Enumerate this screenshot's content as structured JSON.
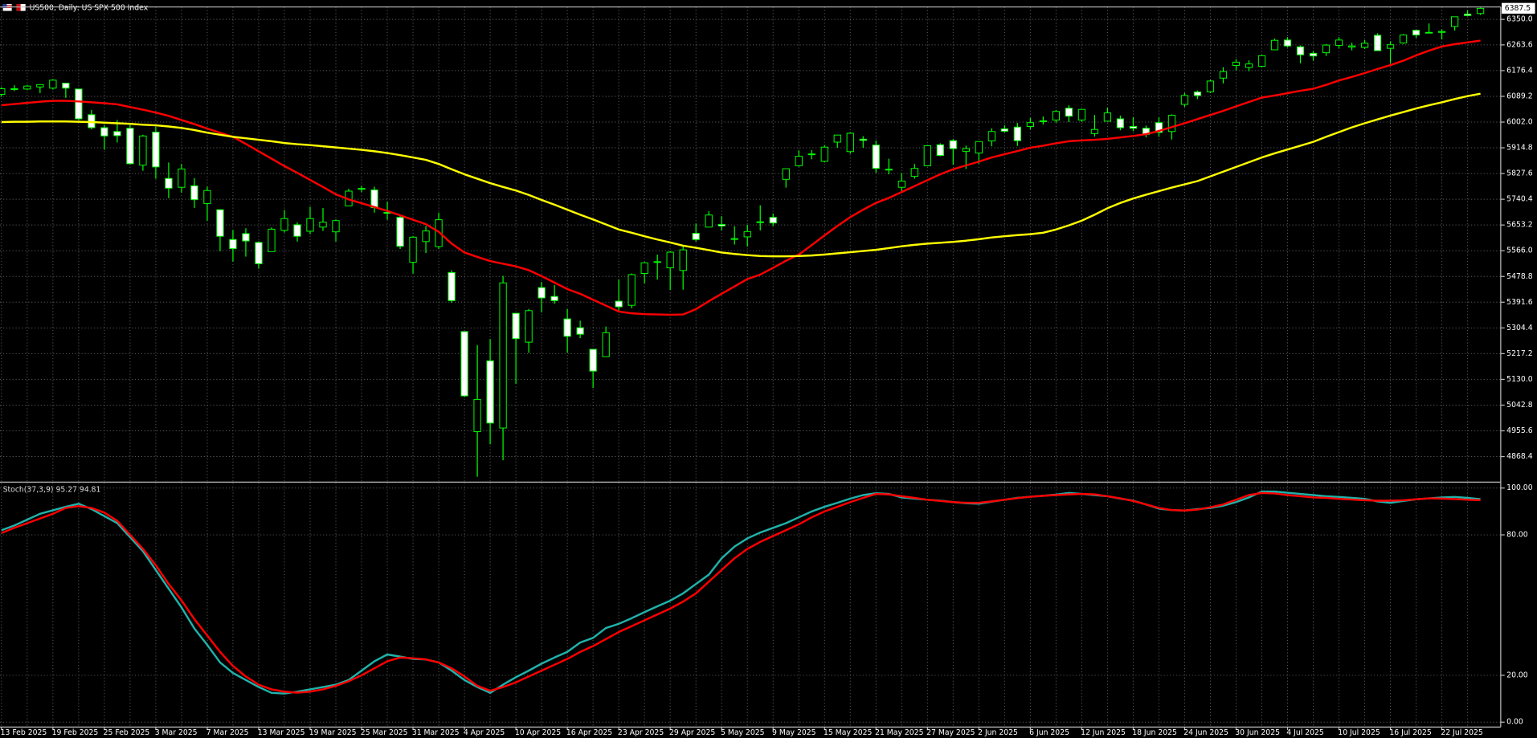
{
  "chart_data": [
    {
      "type": "candlestick",
      "title": "US500, Daily: US SPX 500 Index",
      "categories": [
        "13 Feb 2025",
        null,
        null,
        null,
        "19 Feb 2025",
        null,
        null,
        null,
        "25 Feb 2025",
        null,
        null,
        null,
        "3 Mar 2025",
        null,
        null,
        null,
        "7 Mar 2025",
        null,
        null,
        null,
        "13 Mar 2025",
        null,
        null,
        null,
        "19 Mar 2025",
        null,
        null,
        null,
        "25 Mar 2025",
        null,
        null,
        null,
        "31 Mar 2025",
        null,
        null,
        null,
        "4 Apr 2025",
        null,
        null,
        null,
        "10 Apr 2025",
        null,
        null,
        null,
        "16 Apr 2025",
        null,
        null,
        null,
        "23 Apr 2025",
        null,
        null,
        null,
        "29 Apr 2025",
        null,
        null,
        null,
        "5 May 2025",
        null,
        null,
        null,
        "9 May 2025",
        null,
        null,
        null,
        "15 May 2025",
        null,
        null,
        null,
        "21 May 2025",
        null,
        null,
        null,
        "27 May 2025",
        null,
        null,
        null,
        "2 Jun 2025",
        null,
        null,
        null,
        "6 Jun 2025",
        null,
        null,
        null,
        "12 Jun 2025",
        null,
        null,
        null,
        "18 Jun 2025",
        null,
        null,
        null,
        "24 Jun 2025",
        null,
        null,
        null,
        "30 Jun 2025",
        null,
        null,
        null,
        "4 Jul 2025",
        null,
        null,
        null,
        "10 Jul 2025",
        null,
        null,
        null,
        "16 Jul 2025",
        null,
        null,
        null,
        "22 Jul 2025",
        null,
        null,
        null
      ],
      "open": [
        6096,
        6115,
        6114,
        6121,
        6117,
        6134,
        6114,
        6027,
        5983,
        5970,
        5981,
        5856,
        5968,
        5811,
        5781,
        5786,
        5726,
        5705,
        5604,
        5624,
        5594,
        5563,
        5635,
        5654,
        5632,
        5646,
        5630,
        5718,
        5775,
        5772,
        5696,
        5679,
        5527,
        5597,
        5580,
        5492,
        5292,
        4953,
        5193,
        4965,
        5354,
        5256,
        5441,
        5411,
        5335,
        5305,
        5232,
        5207,
        5395,
        5381,
        5489,
        5529,
        5508,
        5499,
        5625,
        5646,
        5655,
        5606,
        5613,
        5663,
        5679,
        5808,
        5854,
        5894,
        5869,
        5934,
        5902,
        5944,
        5924,
        5842,
        5781,
        5818,
        5854,
        5925,
        5939,
        5903,
        5897,
        5938,
        5979,
        5985,
        5987,
        6004,
        6009,
        6049,
        6009,
        5963,
        6005,
        6013,
        5987,
        5981,
        6000,
        5970,
        6062,
        6104,
        6105,
        6151,
        6194,
        6187,
        6191,
        6247,
        6280,
        6257,
        6235,
        6237,
        6262,
        6256,
        6255,
        6296,
        6252,
        6270,
        6313,
        6306,
        6306,
        6326,
        6368,
        6370
      ],
      "high": [
        6120,
        6127,
        6128,
        6130,
        6147,
        6134,
        6115,
        6043,
        5993,
        6009,
        5994,
        5959,
        5986,
        5865,
        5860,
        5812,
        5783,
        5706,
        5636,
        5642,
        5598,
        5645,
        5704,
        5662,
        5715,
        5711,
        5672,
        5776,
        5786,
        5783,
        5732,
        5685,
        5616,
        5650,
        5695,
        5500,
        5292,
        5246,
        5267,
        5481,
        5354,
        5369,
        5460,
        5450,
        5368,
        5329,
        5232,
        5309,
        5469,
        5489,
        5528,
        5553,
        5565,
        5581,
        5658,
        5700,
        5683,
        5649,
        5654,
        5720,
        5692,
        5845,
        5906,
        5907,
        5924,
        5959,
        5968,
        5954,
        5939,
        5878,
        5829,
        5860,
        5924,
        5930,
        5944,
        5922,
        5937,
        5981,
        5991,
        5999,
        6016,
        6021,
        6043,
        6059,
        6046,
        6026,
        6051,
        6024,
        6018,
        5990,
        6018,
        6028,
        6101,
        6109,
        6145,
        6188,
        6215,
        6211,
        6229,
        6285,
        6290,
        6262,
        6243,
        6266,
        6290,
        6271,
        6280,
        6303,
        6276,
        6300,
        6315,
        6336,
        6316,
        6360,
        6381,
        6390
      ],
      "low": [
        6088,
        6107,
        6110,
        6100,
        6112,
        6084,
        6009,
        5977,
        5908,
        5933,
        5858,
        5837,
        5810,
        5744,
        5763,
        5711,
        5667,
        5564,
        5529,
        5546,
        5505,
        5563,
        5628,
        5597,
        5622,
        5633,
        5597,
        5718,
        5765,
        5695,
        5671,
        5572,
        5489,
        5558,
        5572,
        5390,
        5070,
        4800,
        4910,
        4856,
        5115,
        5220,
        5357,
        5386,
        5220,
        5270,
        5101,
        5207,
        5357,
        5371,
        5455,
        5468,
        5433,
        5434,
        5597,
        5646,
        5634,
        5587,
        5580,
        5635,
        5650,
        5780,
        5851,
        5876,
        5865,
        5915,
        5895,
        5915,
        5830,
        5825,
        5768,
        5810,
        5853,
        5886,
        5857,
        5843,
        5861,
        5920,
        5967,
        5921,
        5978,
        5994,
        6000,
        6002,
        6003,
        5953,
        6004,
        5974,
        5971,
        5950,
        5952,
        5943,
        6053,
        6080,
        6100,
        6133,
        6177,
        6174,
        6187,
        6247,
        6255,
        6201,
        6210,
        6226,
        6251,
        6245,
        6250,
        6243,
        6201,
        6267,
        6287,
        6303,
        6282,
        6312,
        6361,
        6365
      ],
      "close": [
        6115,
        6114,
        6124,
        6129,
        6144,
        6117,
        6013,
        5983,
        5955,
        5956,
        5861,
        5955,
        5850,
        5778,
        5843,
        5739,
        5770,
        5615,
        5573,
        5599,
        5522,
        5639,
        5675,
        5615,
        5675,
        5663,
        5668,
        5768,
        5777,
        5712,
        5693,
        5581,
        5612,
        5633,
        5671,
        5397,
        5074,
        5062,
        4982,
        5457,
        5268,
        5363,
        5406,
        5397,
        5276,
        5283,
        5158,
        5288,
        5376,
        5485,
        5525,
        5529,
        5561,
        5569,
        5604,
        5687,
        5650,
        5607,
        5631,
        5664,
        5660,
        5844,
        5886,
        5892,
        5917,
        5958,
        5964,
        5940,
        5845,
        5842,
        5802,
        5845,
        5922,
        5889,
        5912,
        5912,
        5936,
        5970,
        5971,
        5939,
        6000,
        6006,
        6038,
        6022,
        6045,
        5977,
        6033,
        5983,
        5981,
        5960,
        5967,
        6025,
        6092,
        6092,
        6141,
        6173,
        6205,
        6199,
        6227,
        6279,
        6260,
        6230,
        6226,
        6263,
        6280,
        6260,
        6269,
        6244,
        6264,
        6297,
        6297,
        6305,
        6309,
        6359,
        6363,
        6387.5
      ],
      "up_color": "#000000",
      "down_color": "#ffffff",
      "wick_color": "#00ff00",
      "overlays": [
        {
          "color": "#ff0000",
          "values": [
            6059,
            6063,
            6067,
            6071,
            6074,
            6074,
            6072,
            6069,
            6066,
            6062,
            6053,
            6044,
            6034,
            6023,
            6009,
            5995,
            5980,
            5966,
            5952,
            5928,
            5903,
            5878,
            5853,
            5830,
            5806,
            5782,
            5757,
            5740,
            5727,
            5714,
            5701,
            5686,
            5671,
            5656,
            5630,
            5590,
            5560,
            5545,
            5531,
            5522,
            5513,
            5500,
            5480,
            5458,
            5436,
            5420,
            5400,
            5380,
            5360,
            5354,
            5351,
            5350,
            5349,
            5350,
            5368,
            5395,
            5420,
            5445,
            5470,
            5485,
            5508,
            5532,
            5553,
            5585,
            5618,
            5650,
            5680,
            5705,
            5728,
            5745,
            5765,
            5785,
            5805,
            5825,
            5842,
            5855,
            5868,
            5882,
            5893,
            5904,
            5915,
            5922,
            5930,
            5937,
            5940,
            5942,
            5945,
            5950,
            5955,
            5961,
            5972,
            5985,
            5998,
            6012,
            6026,
            6040,
            6055,
            6070,
            6085,
            6092,
            6100,
            6108,
            6115,
            6128,
            6143,
            6155,
            6168,
            6182,
            6195,
            6210,
            6228,
            6244,
            6258,
            6266,
            6272,
            6278
          ]
        },
        {
          "color": "#ffff00",
          "values": [
            6002,
            6003,
            6003,
            6004,
            6004,
            6004,
            6003,
            6002,
            6000,
            5998,
            5996,
            5993,
            5991,
            5987,
            5982,
            5975,
            5966,
            5959,
            5952,
            5947,
            5942,
            5937,
            5931,
            5927,
            5924,
            5920,
            5916,
            5912,
            5908,
            5903,
            5897,
            5890,
            5882,
            5874,
            5860,
            5842,
            5825,
            5810,
            5795,
            5782,
            5770,
            5755,
            5738,
            5722,
            5705,
            5688,
            5672,
            5655,
            5638,
            5627,
            5615,
            5604,
            5594,
            5583,
            5576,
            5568,
            5560,
            5555,
            5551,
            5548,
            5547,
            5547,
            5548,
            5550,
            5553,
            5557,
            5561,
            5565,
            5569,
            5575,
            5581,
            5586,
            5590,
            5593,
            5596,
            5600,
            5605,
            5611,
            5615,
            5619,
            5622,
            5627,
            5638,
            5652,
            5668,
            5688,
            5710,
            5728,
            5743,
            5756,
            5768,
            5780,
            5791,
            5802,
            5818,
            5834,
            5850,
            5866,
            5882,
            5896,
            5909,
            5922,
            5935,
            5952,
            5968,
            5984,
            5998,
            6011,
            6024,
            6036,
            6048,
            6059,
            6069,
            6080,
            6090,
            6098
          ]
        }
      ],
      "ylim": [
        4785,
        6392
      ],
      "yticks": [
        {
          "value": 6350,
          "label": "6350.0"
        },
        6263.6,
        6176.4,
        6089.2,
        {
          "value": 6002,
          "label": "6002.0"
        },
        5914.8,
        5827.6,
        5740.4,
        5653.2,
        {
          "value": 5566,
          "label": "5566.0"
        },
        5478.8,
        5391.6,
        5304.4,
        5217.2,
        {
          "value": 5130,
          "label": "5130.0"
        },
        5042.8,
        4955.6,
        4868.4
      ],
      "grid": true
    },
    {
      "type": "line",
      "title": "Stoch(37,3,9) 95.27 94.81",
      "series": [
        {
          "color": "#20b2aa",
          "values": [
            82,
            84,
            86.5,
            89,
            90.5,
            92,
            93.3,
            91,
            88,
            85,
            79,
            73,
            65,
            57,
            49,
            40,
            33,
            25.5,
            21,
            18,
            15,
            12.5,
            12.2,
            13,
            14,
            15,
            16,
            18,
            22,
            26,
            28.9,
            28,
            27,
            26.8,
            25.5,
            22,
            18,
            15,
            12.5,
            16,
            19.2,
            22,
            25,
            27.6,
            30,
            34,
            36,
            40.2,
            42,
            44.4,
            47,
            49.5,
            51.9,
            55,
            59,
            63,
            70,
            75,
            78.5,
            81,
            83,
            85,
            87.5,
            90,
            92,
            93.7,
            95.5,
            97,
            97.8,
            97.5,
            96,
            95.5,
            95,
            94.6,
            94,
            93.5,
            93.3,
            94.2,
            95,
            95.8,
            96.3,
            96.7,
            97.2,
            97.9,
            97.5,
            97,
            96.5,
            95.5,
            94.6,
            93,
            91.2,
            90.6,
            90.4,
            91,
            91.5,
            92.5,
            94,
            96,
            98.5,
            98.5,
            98,
            97.5,
            97,
            96.5,
            96.2,
            95.8,
            95.4,
            94.3,
            93.7,
            94.5,
            95.2,
            95.6,
            96,
            96.2,
            95.8,
            95.27
          ]
        },
        {
          "color": "#ff0000",
          "values": [
            80.8,
            83,
            85,
            87,
            89,
            91.5,
            92.3,
            91.5,
            89.5,
            86,
            80,
            74,
            67,
            59,
            52,
            44,
            37,
            30,
            24,
            19.5,
            16,
            14,
            13,
            12.6,
            13,
            14,
            15.5,
            17.5,
            20,
            23,
            26,
            27.6,
            27.3,
            26.8,
            25.5,
            23,
            19.5,
            15.5,
            13.4,
            15,
            17,
            19.5,
            22,
            24.5,
            27,
            30,
            32.5,
            35.5,
            38.5,
            41,
            43.5,
            46,
            48.5,
            51.5,
            55,
            60,
            65,
            70,
            74,
            77,
            79.5,
            82,
            84.5,
            87.5,
            90,
            92,
            94,
            95.8,
            97.5,
            97.3,
            96.5,
            95.8,
            95,
            94.5,
            94,
            93.7,
            93.7,
            94.3,
            95,
            95.7,
            96.3,
            96.7,
            97,
            97.3,
            97.5,
            97.3,
            96.5,
            95.6,
            94.5,
            93,
            91.5,
            90.6,
            90.4,
            90.8,
            91.8,
            93,
            95,
            97,
            97.9,
            97.7,
            97,
            96.5,
            96,
            95.8,
            95.4,
            95.1,
            94.8,
            94.6,
            94.6,
            94.8,
            95.2,
            95.6,
            95.5,
            95.3,
            95,
            94.81
          ]
        }
      ],
      "ylim": [
        -1.7,
        102.1
      ],
      "yticks": [
        {
          "value": 100,
          "label": "100.00"
        },
        {
          "value": 80,
          "label": "80.00"
        },
        {
          "value": 20,
          "label": "20.00"
        },
        {
          "value": 0,
          "label": "0.00"
        }
      ],
      "grid": true
    }
  ]
}
